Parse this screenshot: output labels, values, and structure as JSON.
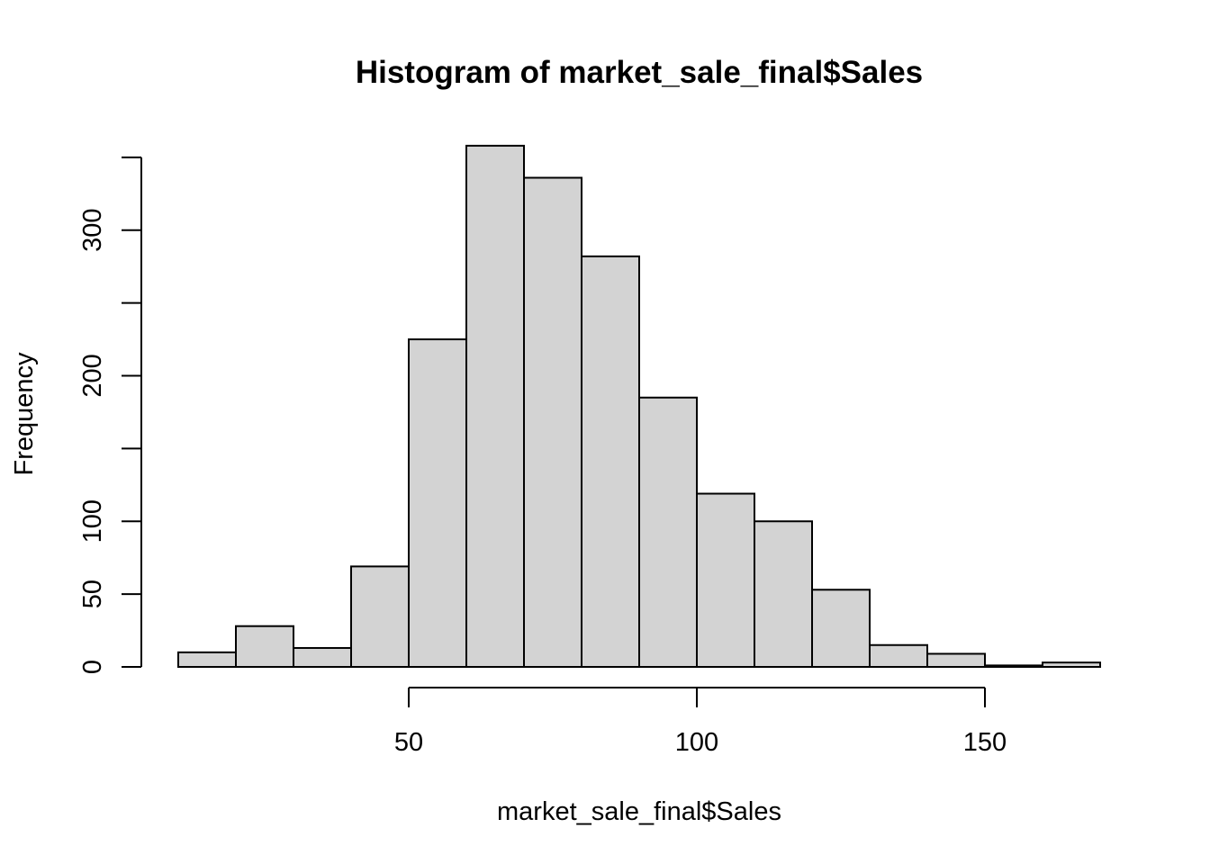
{
  "chart_data": {
    "type": "bar",
    "subtype": "histogram",
    "title": "Histogram of market_sale_final$Sales",
    "xlabel": "market_sale_final$Sales",
    "ylabel": "Frequency",
    "bins": [
      [
        10,
        20
      ],
      [
        20,
        30
      ],
      [
        30,
        40
      ],
      [
        40,
        50
      ],
      [
        50,
        60
      ],
      [
        60,
        70
      ],
      [
        70,
        80
      ],
      [
        80,
        90
      ],
      [
        90,
        100
      ],
      [
        100,
        110
      ],
      [
        110,
        120
      ],
      [
        120,
        130
      ],
      [
        130,
        140
      ],
      [
        140,
        150
      ],
      [
        150,
        160
      ],
      [
        160,
        170
      ]
    ],
    "values": [
      10,
      28,
      13,
      69,
      225,
      358,
      336,
      282,
      185,
      119,
      100,
      53,
      15,
      9,
      1,
      3
    ],
    "xlim": [
      10,
      170
    ],
    "ylim": [
      0,
      350
    ],
    "x_ticks": [
      50,
      100,
      150
    ],
    "x_tick_labels": [
      "50",
      "100",
      "150"
    ],
    "y_ticks": [
      0,
      50,
      100,
      150,
      200,
      250,
      300,
      350
    ],
    "y_tick_labels": [
      "0",
      "50",
      "100",
      "",
      "200",
      "",
      "300",
      ""
    ],
    "bar_color": "#d3d3d3",
    "border_color": "#000000",
    "grid": false
  }
}
